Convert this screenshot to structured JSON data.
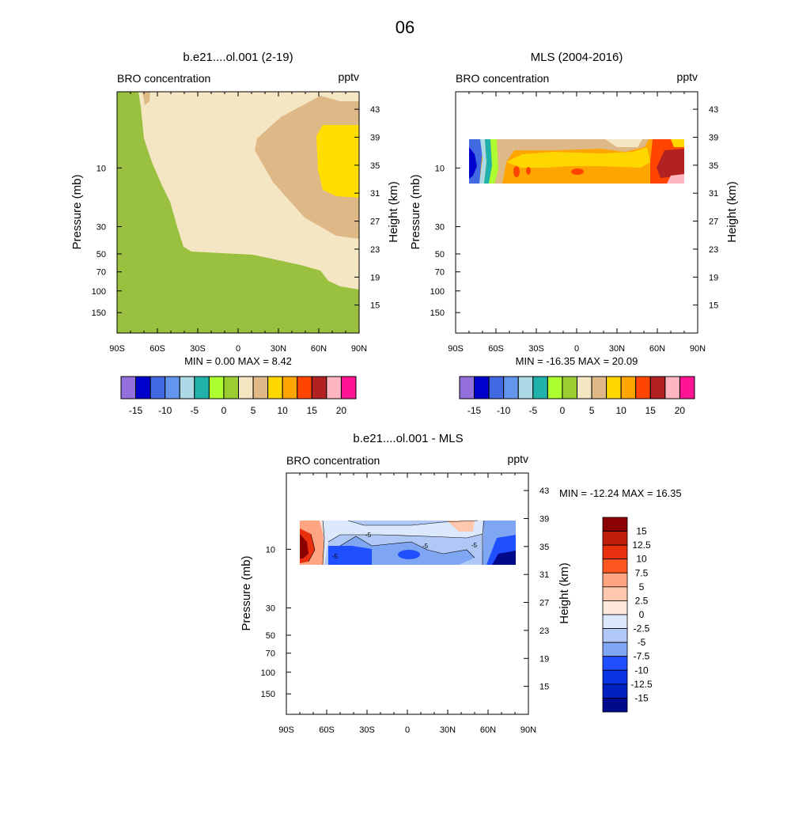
{
  "page_title": "06",
  "chart_data": [
    {
      "type": "contour",
      "id": "model",
      "title": "b.e21....ol.001 (2-19)",
      "left_label": "BRO concentration",
      "right_label": "pptv",
      "ylabel": "Pressure (mb)",
      "ylabel_right": "Height (km)",
      "x_ticks": [
        "90S",
        "60S",
        "30S",
        "0",
        "30N",
        "60N",
        "90N"
      ],
      "x_tick_values": [
        -90,
        -60,
        -30,
        0,
        30,
        60,
        90
      ],
      "y_ticks": [
        "10",
        "30",
        "50",
        "70",
        "100",
        "150"
      ],
      "y_tick_values": [
        10,
        30,
        50,
        70,
        100,
        150
      ],
      "height_ticks": [
        "43",
        "39",
        "35",
        "31",
        "27",
        "23",
        "19",
        "15"
      ],
      "height_tick_values": [
        43,
        39,
        35,
        31,
        27,
        23,
        19,
        15
      ],
      "xlim": [
        -90,
        90
      ],
      "ylim_pressure": [
        2.5,
        200
      ],
      "stats": "MIN =   0.00  MAX =   8.42",
      "min": 0.0,
      "max": 8.42
    },
    {
      "type": "contour",
      "id": "mls",
      "title": "MLS (2004-2016)",
      "left_label": "BRO concentration",
      "right_label": "pptv",
      "ylabel": "Pressure (mb)",
      "ylabel_right": "Height (km)",
      "x_ticks": [
        "90S",
        "60S",
        "30S",
        "0",
        "30N",
        "60N",
        "90N"
      ],
      "x_tick_values": [
        -90,
        -60,
        -30,
        0,
        30,
        60,
        90
      ],
      "y_ticks": [
        "10",
        "30",
        "50",
        "70",
        "100",
        "150"
      ],
      "y_tick_values": [
        10,
        30,
        50,
        70,
        100,
        150
      ],
      "height_ticks": [
        "43",
        "39",
        "35",
        "31",
        "27",
        "23",
        "19",
        "15"
      ],
      "height_tick_values": [
        43,
        39,
        35,
        31,
        27,
        23,
        19,
        15
      ],
      "xlim": [
        -90,
        90
      ],
      "data_extent_lat": [
        -80,
        80
      ],
      "stats": "MIN = -16.35  MAX =  20.09",
      "min": -16.35,
      "max": 20.09
    },
    {
      "type": "contour",
      "id": "diff",
      "title": "b.e21....ol.001 - MLS",
      "left_label": "BRO concentration",
      "right_label": "pptv",
      "ylabel": "Pressure (mb)",
      "ylabel_right": "Height (km)",
      "x_ticks": [
        "90S",
        "60S",
        "30S",
        "0",
        "30N",
        "60N",
        "90N"
      ],
      "x_tick_values": [
        -90,
        -60,
        -30,
        0,
        30,
        60,
        90
      ],
      "y_ticks": [
        "10",
        "30",
        "50",
        "70",
        "100",
        "150"
      ],
      "y_tick_values": [
        10,
        30,
        50,
        70,
        100,
        150
      ],
      "height_ticks": [
        "43",
        "39",
        "35",
        "31",
        "27",
        "23",
        "19",
        "15"
      ],
      "height_tick_values": [
        43,
        39,
        35,
        31,
        27,
        23,
        19,
        15
      ],
      "xlim": [
        -90,
        90
      ],
      "data_extent_lat": [
        -80,
        80
      ],
      "stats": "MIN = -12.24  MAX =  16.35",
      "min": -12.24,
      "max": 16.35,
      "contour_labels": [
        "-5",
        "-5",
        "-5",
        "-5"
      ]
    }
  ],
  "colorbar_top": {
    "labels": [
      "-15",
      "-10",
      "-5",
      "0",
      "5",
      "10",
      "15",
      "20"
    ],
    "colors": [
      "#9370db",
      "#0000cd",
      "#4169e1",
      "#6495ed",
      "#add8e6",
      "#20b2aa",
      "#adff2f",
      "#9acd32",
      "#f5e6c3",
      "#deb887",
      "#ffd700",
      "#ffa500",
      "#ff4500",
      "#b22222",
      "#ffb6c1",
      "#ff1493"
    ]
  },
  "colorbar_diff": {
    "labels": [
      "15",
      "12.5",
      "10",
      "7.5",
      "5",
      "2.5",
      "0",
      "-2.5",
      "-5",
      "-7.5",
      "-10",
      "-12.5",
      "-15"
    ],
    "colors": [
      "#8b0000",
      "#c0200b",
      "#e8300f",
      "#ff5722",
      "#ffa581",
      "#ffc8ae",
      "#ffe8dc",
      "#dce8fb",
      "#b0c8f5",
      "#7fa6f2",
      "#1f4fff",
      "#0a33e6",
      "#0020c0",
      "#000a8a"
    ]
  }
}
